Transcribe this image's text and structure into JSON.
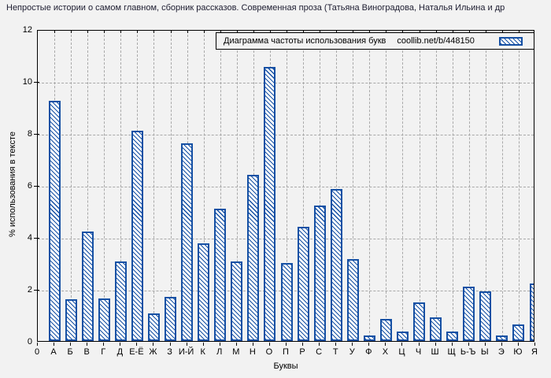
{
  "chart_data": {
    "type": "bar",
    "title": "Непростые истории о самом главном, сборник рассказов. Современная проза (Татьяна Виноградова, Наталья Ильина и др",
    "legend": {
      "label": "Диаграмма частоты использования букв",
      "source": "coollib.net/b/448150",
      "position": "top-inside"
    },
    "xlabel": "Буквы",
    "ylabel": "% использования в тексте",
    "origin_label": "0",
    "ylim": [
      0,
      12
    ],
    "yticks": [
      0,
      2,
      4,
      6,
      8,
      10,
      12
    ],
    "grid": true,
    "categories": [
      "А",
      "Б",
      "В",
      "Г",
      "Д",
      "Е-Ё",
      "Ж",
      "З",
      "И-Й",
      "К",
      "Л",
      "М",
      "Н",
      "О",
      "П",
      "Р",
      "С",
      "Т",
      "У",
      "Ф",
      "Х",
      "Ц",
      "Ч",
      "Ш",
      "Щ",
      "Ь-Ъ",
      "Ы",
      "Э",
      "Ю",
      "Я"
    ],
    "values": [
      9.25,
      1.6,
      4.2,
      1.65,
      3.05,
      8.1,
      1.05,
      1.7,
      7.6,
      3.75,
      5.1,
      3.05,
      6.4,
      10.55,
      3.0,
      4.4,
      5.2,
      5.85,
      3.15,
      0.2,
      0.85,
      0.35,
      1.5,
      0.9,
      0.35,
      2.1,
      1.9,
      0.2,
      0.65,
      2.2
    ],
    "colors": {
      "bar_border": "#1550a4",
      "bar_fill": "#ffffff",
      "grid": "#a8a8a8",
      "axis": "#000000",
      "background": "#f2f2f2",
      "title_text": "#1c1c30",
      "label_text": "#000000"
    }
  }
}
